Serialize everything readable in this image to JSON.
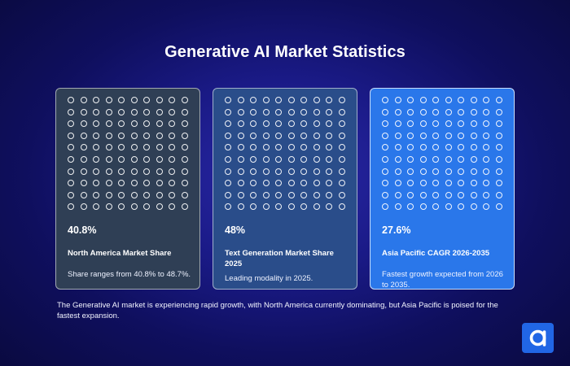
{
  "title": "Generative AI Market Statistics",
  "cards": [
    {
      "stat": "40.8%",
      "label": "North America Market Share",
      "description": "Share ranges from 40.8% to 48.7%.",
      "dot_rows": 10,
      "dot_cols": 10,
      "background": "#2f3f55"
    },
    {
      "stat": "48%",
      "label": "Text Generation Market Share 2025",
      "description": "Leading modality in 2025.",
      "dot_rows": 10,
      "dot_cols": 10,
      "background": "#2a4d8a"
    },
    {
      "stat": "27.6%",
      "label": "Asia Pacific CAGR 2026-2035",
      "description": "Fastest growth expected from 2026 to 2035.",
      "dot_rows": 10,
      "dot_cols": 10,
      "background": "#2a77ea"
    }
  ],
  "footer": "The Generative AI market is experiencing rapid growth, with North America currently dominating, but Asia Pacific is poised for the fastest expansion.",
  "logo": {
    "icon": "brand-logo-icon",
    "color": "#2166e5"
  }
}
